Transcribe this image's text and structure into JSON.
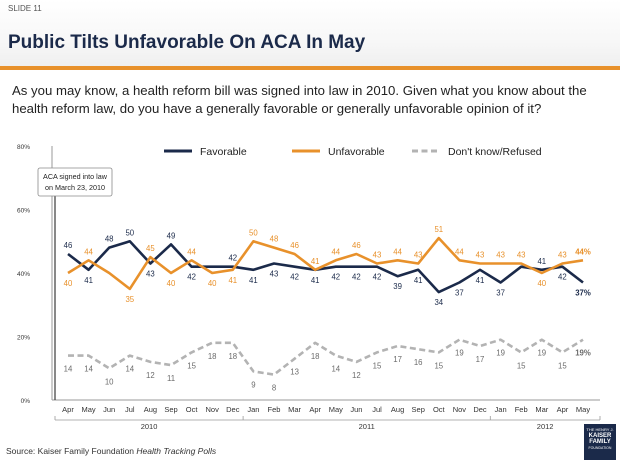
{
  "slide": {
    "number": "SLIDE 11",
    "title": "Public Tilts Unfavorable On ACA In May",
    "question": "As you may know, a health reform bill was signed into law in 2010. Given what you know about the health reform law, do you have a generally favorable or generally unfavorable opinion of it?",
    "source_prefix": "Source: Kaiser Family Foundation ",
    "source_italic": "Health Tracking Polls",
    "logo": {
      "line1": "THE HENRY J.",
      "line2": "KAISER",
      "line3": "FAMILY",
      "line4": "FOUNDATION"
    }
  },
  "chart_data": {
    "type": "line",
    "title": "",
    "xlabel": "",
    "ylabel": "",
    "ylim": [
      0,
      80
    ],
    "yticks": [
      "0%",
      "20%",
      "40%",
      "60%",
      "80%"
    ],
    "grid": false,
    "legend_position": "top",
    "categories": [
      "Apr",
      "May",
      "Jun",
      "Jul",
      "Aug",
      "Sep",
      "Oct",
      "Nov",
      "Dec",
      "Jan",
      "Feb",
      "Mar",
      "Apr",
      "May",
      "Jun",
      "Jul",
      "Aug",
      "Sep",
      "Oct",
      "Nov",
      "Dec",
      "Jan",
      "Feb",
      "Mar",
      "Apr",
      "May"
    ],
    "year_groups": [
      {
        "label": "2010",
        "start": 0,
        "end": 8
      },
      {
        "label": "2011",
        "start": 9,
        "end": 20
      },
      {
        "label": "2012",
        "start": 21,
        "end": 25
      }
    ],
    "annotation": {
      "text_line1": "ACA signed into law",
      "text_line2": "on March 23, 2010",
      "index": 0
    },
    "series": [
      {
        "name": "Favorable",
        "color": "#1b2a4a",
        "style": "solid",
        "values": [
          46,
          41,
          48,
          50,
          43,
          49,
          42,
          42,
          42,
          41,
          43,
          42,
          41,
          42,
          42,
          42,
          39,
          41,
          34,
          37,
          41,
          37,
          42,
          41,
          42,
          37
        ],
        "labels": [
          "46",
          "41",
          "48",
          "50",
          "43",
          "49",
          "42",
          "",
          "42",
          "41",
          "43",
          "42",
          "41",
          "42",
          "42",
          "42",
          "39",
          "41",
          "34",
          "37",
          "41",
          "37",
          "",
          "41",
          "42",
          "37%"
        ],
        "label_pos": [
          "above",
          "below",
          "above",
          "above",
          "below",
          "above",
          "below",
          "",
          "above",
          "below",
          "below",
          "below",
          "below",
          "below",
          "below",
          "below",
          "below",
          "below",
          "below",
          "below",
          "below",
          "below",
          "",
          "above",
          "below",
          "below"
        ]
      },
      {
        "name": "Unfavorable",
        "color": "#e8912b",
        "style": "solid",
        "values": [
          40,
          44,
          40,
          35,
          45,
          40,
          44,
          40,
          41,
          50,
          48,
          46,
          41,
          44,
          46,
          43,
          44,
          43,
          51,
          44,
          43,
          43,
          43,
          40,
          43,
          44
        ],
        "labels": [
          "40",
          "44",
          "",
          "35",
          "45",
          "40",
          "44",
          "40",
          "41",
          "50",
          "48",
          "46",
          "41",
          "44",
          "46",
          "43",
          "44",
          "43",
          "51",
          "44",
          "43",
          "43",
          "43",
          "40",
          "43",
          "44%"
        ],
        "label_pos": [
          "below",
          "above",
          "",
          "below",
          "above",
          "below",
          "above",
          "below",
          "below",
          "above",
          "above",
          "above",
          "above",
          "above",
          "above",
          "above",
          "above",
          "above",
          "above",
          "above",
          "above",
          "above",
          "above",
          "below",
          "above",
          "above"
        ]
      },
      {
        "name": "Don't know/Refused",
        "color": "#b3b3b3",
        "style": "dashed",
        "values": [
          14,
          14,
          10,
          14,
          12,
          11,
          15,
          18,
          18,
          9,
          8,
          13,
          18,
          14,
          12,
          15,
          17,
          16,
          15,
          19,
          17,
          19,
          15,
          19,
          15,
          19
        ],
        "labels": [
          "14",
          "14",
          "10",
          "14",
          "12",
          "11",
          "15",
          "18",
          "18",
          "9",
          "8",
          "13",
          "18",
          "14",
          "12",
          "15",
          "17",
          "16",
          "15",
          "19",
          "17",
          "19",
          "15",
          "19",
          "15",
          "19%"
        ],
        "label_pos": [
          "below",
          "below",
          "below",
          "below",
          "below",
          "below",
          "below",
          "below",
          "below",
          "below",
          "below",
          "below",
          "below",
          "below",
          "below",
          "below",
          "below",
          "below",
          "below",
          "below",
          "below",
          "below",
          "below",
          "below",
          "below",
          "below"
        ]
      }
    ]
  }
}
